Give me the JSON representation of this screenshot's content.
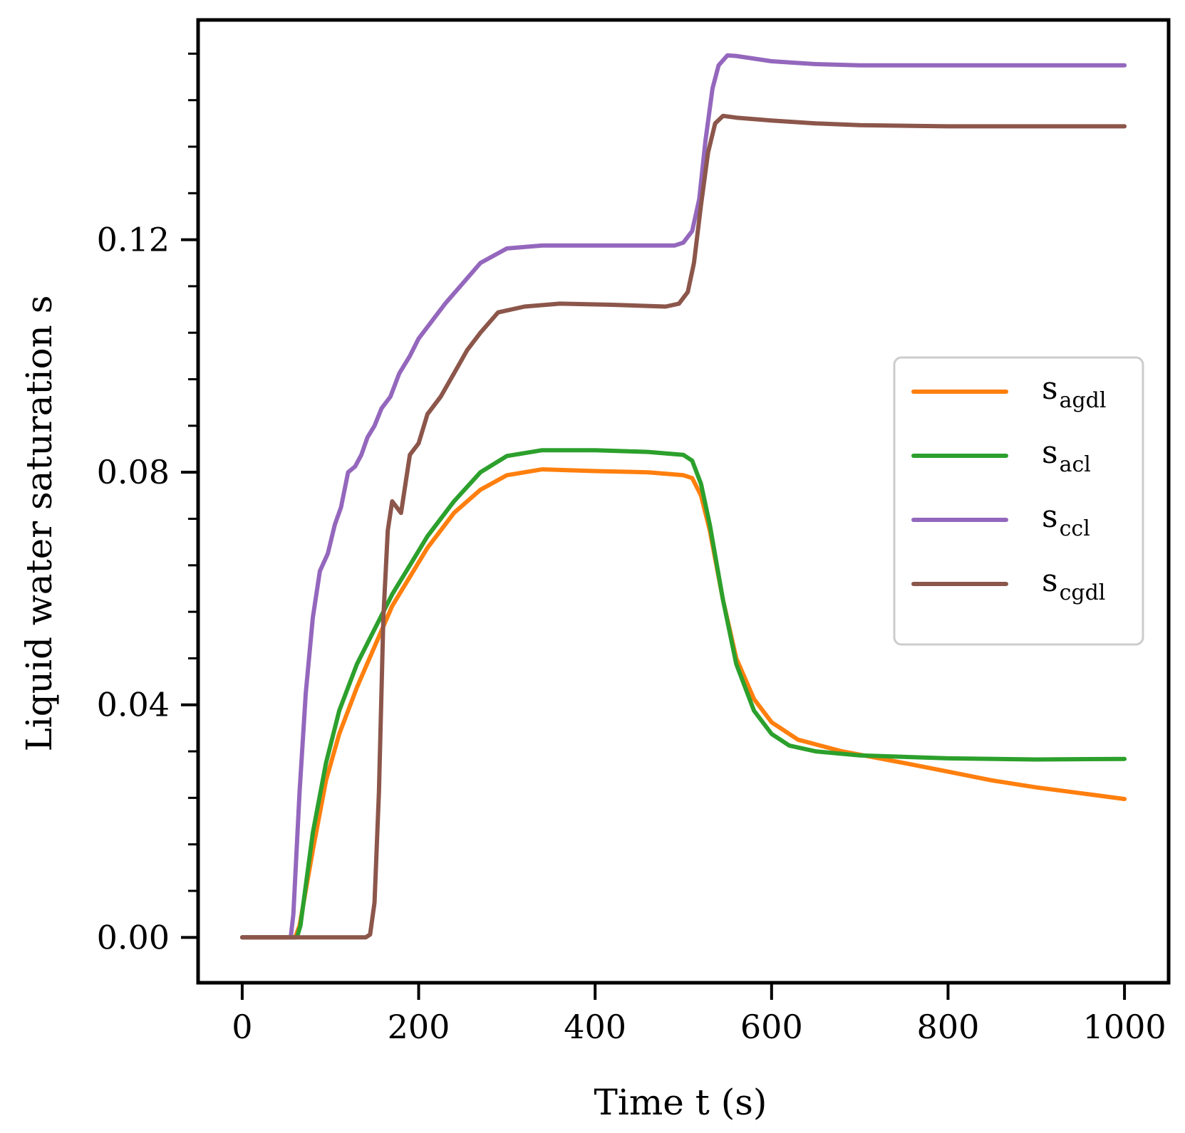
{
  "chart_data": {
    "type": "line",
    "title": "",
    "xlabel": "Time t (s)",
    "ylabel": "Liquid water saturation s",
    "xlim": [
      -50,
      1050
    ],
    "ylim": [
      -0.0078,
      0.1578
    ],
    "xticks": [
      0,
      200,
      400,
      600,
      800,
      1000
    ],
    "xtick_labels": [
      "0",
      "200",
      "400",
      "600",
      "800",
      "1000"
    ],
    "yticks": [
      0.0,
      0.04,
      0.08,
      0.12
    ],
    "ytick_labels": [
      "0.00",
      "0.04",
      "0.08",
      "0.12"
    ],
    "yminor_step": 0.008,
    "legend_position": "center-right",
    "series": [
      {
        "name": "s",
        "sub": "agdl",
        "color": "#ff7f0e",
        "points": [
          [
            0,
            0
          ],
          [
            60,
            0
          ],
          [
            65,
            0.002
          ],
          [
            80,
            0.015
          ],
          [
            95,
            0.027
          ],
          [
            110,
            0.035
          ],
          [
            130,
            0.043
          ],
          [
            150,
            0.05
          ],
          [
            170,
            0.057
          ],
          [
            190,
            0.062
          ],
          [
            210,
            0.067
          ],
          [
            240,
            0.073
          ],
          [
            270,
            0.077
          ],
          [
            300,
            0.0795
          ],
          [
            340,
            0.0805
          ],
          [
            400,
            0.0802
          ],
          [
            460,
            0.08
          ],
          [
            500,
            0.0795
          ],
          [
            510,
            0.079
          ],
          [
            520,
            0.076
          ],
          [
            530,
            0.07
          ],
          [
            545,
            0.058
          ],
          [
            560,
            0.048
          ],
          [
            580,
            0.041
          ],
          [
            600,
            0.037
          ],
          [
            630,
            0.034
          ],
          [
            680,
            0.032
          ],
          [
            750,
            0.03
          ],
          [
            800,
            0.0285
          ],
          [
            850,
            0.027
          ],
          [
            900,
            0.0258
          ],
          [
            950,
            0.0248
          ],
          [
            1000,
            0.0238
          ]
        ]
      },
      {
        "name": "s",
        "sub": "acl",
        "color": "#2ca02c",
        "points": [
          [
            0,
            0
          ],
          [
            62,
            0
          ],
          [
            66,
            0.002
          ],
          [
            80,
            0.018
          ],
          [
            95,
            0.03
          ],
          [
            110,
            0.039
          ],
          [
            130,
            0.047
          ],
          [
            150,
            0.053
          ],
          [
            170,
            0.059
          ],
          [
            190,
            0.064
          ],
          [
            210,
            0.069
          ],
          [
            240,
            0.075
          ],
          [
            270,
            0.08
          ],
          [
            300,
            0.0828
          ],
          [
            340,
            0.0838
          ],
          [
            400,
            0.0838
          ],
          [
            460,
            0.0835
          ],
          [
            500,
            0.083
          ],
          [
            510,
            0.082
          ],
          [
            520,
            0.078
          ],
          [
            530,
            0.071
          ],
          [
            545,
            0.058
          ],
          [
            560,
            0.047
          ],
          [
            580,
            0.039
          ],
          [
            600,
            0.035
          ],
          [
            620,
            0.033
          ],
          [
            650,
            0.032
          ],
          [
            700,
            0.0313
          ],
          [
            800,
            0.0308
          ],
          [
            900,
            0.0306
          ],
          [
            1000,
            0.0307
          ]
        ]
      },
      {
        "name": "s",
        "sub": "ccl",
        "color": "#9467bd",
        "points": [
          [
            0,
            0
          ],
          [
            55,
            0
          ],
          [
            58,
            0.004
          ],
          [
            65,
            0.025
          ],
          [
            72,
            0.042
          ],
          [
            80,
            0.055
          ],
          [
            88,
            0.063
          ],
          [
            97,
            0.066
          ],
          [
            105,
            0.071
          ],
          [
            112,
            0.074
          ],
          [
            120,
            0.08
          ],
          [
            128,
            0.081
          ],
          [
            135,
            0.083
          ],
          [
            142,
            0.086
          ],
          [
            150,
            0.088
          ],
          [
            158,
            0.091
          ],
          [
            168,
            0.093
          ],
          [
            178,
            0.097
          ],
          [
            190,
            0.1
          ],
          [
            200,
            0.103
          ],
          [
            215,
            0.106
          ],
          [
            230,
            0.109
          ],
          [
            250,
            0.1125
          ],
          [
            270,
            0.116
          ],
          [
            300,
            0.1185
          ],
          [
            340,
            0.119
          ],
          [
            400,
            0.119
          ],
          [
            460,
            0.119
          ],
          [
            490,
            0.119
          ],
          [
            500,
            0.1195
          ],
          [
            510,
            0.1215
          ],
          [
            518,
            0.127
          ],
          [
            525,
            0.137
          ],
          [
            533,
            0.146
          ],
          [
            540,
            0.15
          ],
          [
            550,
            0.1517
          ],
          [
            560,
            0.1516
          ],
          [
            600,
            0.1507
          ],
          [
            650,
            0.1502
          ],
          [
            700,
            0.15
          ],
          [
            800,
            0.15
          ],
          [
            1000,
            0.15
          ]
        ]
      },
      {
        "name": "s",
        "sub": "cgdl",
        "color": "#8c564b",
        "points": [
          [
            0,
            0
          ],
          [
            140,
            0
          ],
          [
            145,
            0.0005
          ],
          [
            150,
            0.006
          ],
          [
            155,
            0.025
          ],
          [
            160,
            0.055
          ],
          [
            165,
            0.07
          ],
          [
            170,
            0.075
          ],
          [
            175,
            0.074
          ],
          [
            180,
            0.073
          ],
          [
            185,
            0.078
          ],
          [
            190,
            0.083
          ],
          [
            200,
            0.085
          ],
          [
            210,
            0.09
          ],
          [
            225,
            0.093
          ],
          [
            240,
            0.097
          ],
          [
            255,
            0.101
          ],
          [
            270,
            0.104
          ],
          [
            290,
            0.1075
          ],
          [
            320,
            0.1085
          ],
          [
            360,
            0.109
          ],
          [
            420,
            0.1088
          ],
          [
            480,
            0.1085
          ],
          [
            495,
            0.109
          ],
          [
            505,
            0.111
          ],
          [
            512,
            0.116
          ],
          [
            520,
            0.126
          ],
          [
            528,
            0.135
          ],
          [
            536,
            0.14
          ],
          [
            545,
            0.1413
          ],
          [
            560,
            0.141
          ],
          [
            600,
            0.1405
          ],
          [
            650,
            0.14
          ],
          [
            700,
            0.1397
          ],
          [
            800,
            0.1395
          ],
          [
            1000,
            0.1395
          ]
        ]
      }
    ]
  }
}
